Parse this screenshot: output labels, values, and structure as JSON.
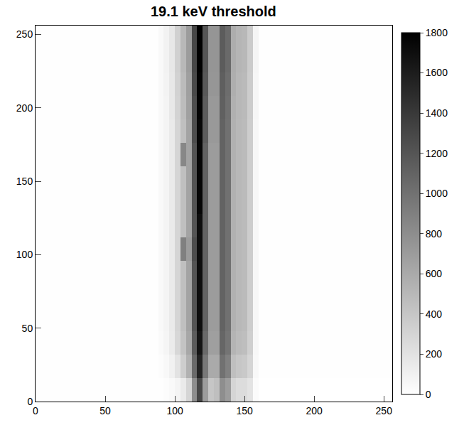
{
  "chart_data": {
    "type": "heatmap",
    "title": "19.1 keV threshold",
    "x_edges": [
      0,
      88,
      92,
      96,
      100,
      104,
      108,
      112,
      116,
      120,
      124,
      128,
      132,
      136,
      140,
      144,
      148,
      152,
      156,
      160,
      256
    ],
    "y_edges": [
      0,
      16,
      32,
      48,
      64,
      80,
      96,
      112,
      128,
      144,
      160,
      176,
      192,
      208,
      224,
      240,
      256
    ],
    "cells": [
      [
        5,
        10,
        20,
        40,
        80,
        150,
        300,
        800,
        1300,
        700,
        400,
        450,
        800,
        700,
        300,
        250,
        250,
        200,
        30,
        3
      ],
      [
        8,
        20,
        50,
        100,
        200,
        350,
        550,
        1050,
        1550,
        950,
        600,
        600,
        1000,
        900,
        450,
        400,
        380,
        300,
        50,
        5
      ],
      [
        10,
        35,
        70,
        140,
        280,
        420,
        620,
        1150,
        1650,
        1050,
        680,
        680,
        1080,
        980,
        530,
        480,
        460,
        340,
        55,
        5
      ],
      [
        10,
        40,
        80,
        150,
        300,
        450,
        650,
        1200,
        1700,
        1100,
        700,
        700,
        1100,
        1000,
        550,
        500,
        480,
        350,
        60,
        5
      ],
      [
        10,
        40,
        80,
        150,
        300,
        450,
        650,
        1200,
        1700,
        1100,
        700,
        700,
        1100,
        1000,
        550,
        500,
        480,
        350,
        60,
        5
      ],
      [
        10,
        40,
        80,
        150,
        300,
        450,
        650,
        1200,
        1700,
        1100,
        700,
        700,
        1100,
        1000,
        550,
        500,
        480,
        350,
        60,
        5
      ],
      [
        10,
        40,
        80,
        150,
        300,
        900,
        700,
        1250,
        1700,
        1100,
        700,
        700,
        1100,
        1000,
        550,
        500,
        480,
        350,
        60,
        5
      ],
      [
        10,
        40,
        80,
        150,
        300,
        450,
        650,
        1200,
        1700,
        1100,
        700,
        700,
        1100,
        1000,
        550,
        500,
        480,
        350,
        60,
        5
      ],
      [
        10,
        40,
        80,
        150,
        300,
        450,
        650,
        1200,
        1750,
        1100,
        700,
        700,
        1100,
        1000,
        550,
        500,
        480,
        350,
        60,
        5
      ],
      [
        10,
        40,
        80,
        150,
        300,
        450,
        650,
        1200,
        1750,
        1100,
        700,
        700,
        1100,
        1000,
        550,
        500,
        480,
        350,
        60,
        5
      ],
      [
        10,
        40,
        80,
        150,
        300,
        850,
        650,
        1200,
        1750,
        1100,
        700,
        700,
        1100,
        1000,
        550,
        500,
        480,
        350,
        60,
        5
      ],
      [
        10,
        40,
        80,
        150,
        300,
        450,
        650,
        1250,
        1750,
        1150,
        720,
        720,
        1100,
        1000,
        550,
        500,
        480,
        350,
        60,
        5
      ],
      [
        10,
        40,
        80,
        160,
        310,
        470,
        670,
        1250,
        1780,
        1150,
        720,
        720,
        1120,
        1020,
        560,
        510,
        490,
        360,
        65,
        5
      ],
      [
        10,
        45,
        85,
        160,
        320,
        480,
        680,
        1280,
        1780,
        1180,
        740,
        740,
        1130,
        1030,
        570,
        510,
        490,
        360,
        65,
        5
      ],
      [
        10,
        45,
        90,
        170,
        330,
        500,
        700,
        1300,
        1800,
        1200,
        750,
        750,
        1150,
        1050,
        580,
        520,
        500,
        370,
        70,
        5
      ],
      [
        10,
        45,
        90,
        170,
        330,
        500,
        700,
        1300,
        1800,
        1200,
        750,
        750,
        1150,
        1050,
        580,
        520,
        500,
        370,
        70,
        5
      ]
    ],
    "xlim": [
      0,
      256
    ],
    "ylim": [
      0,
      256
    ],
    "xticks": [
      0,
      50,
      100,
      150,
      200,
      250
    ],
    "yticks": [
      0,
      50,
      100,
      150,
      200,
      250
    ],
    "colorbar_range": [
      0,
      1800
    ],
    "colorbar_ticks": [
      0,
      200,
      400,
      600,
      800,
      1000,
      1200,
      1400,
      1600,
      1800
    ],
    "color": "#000000"
  }
}
